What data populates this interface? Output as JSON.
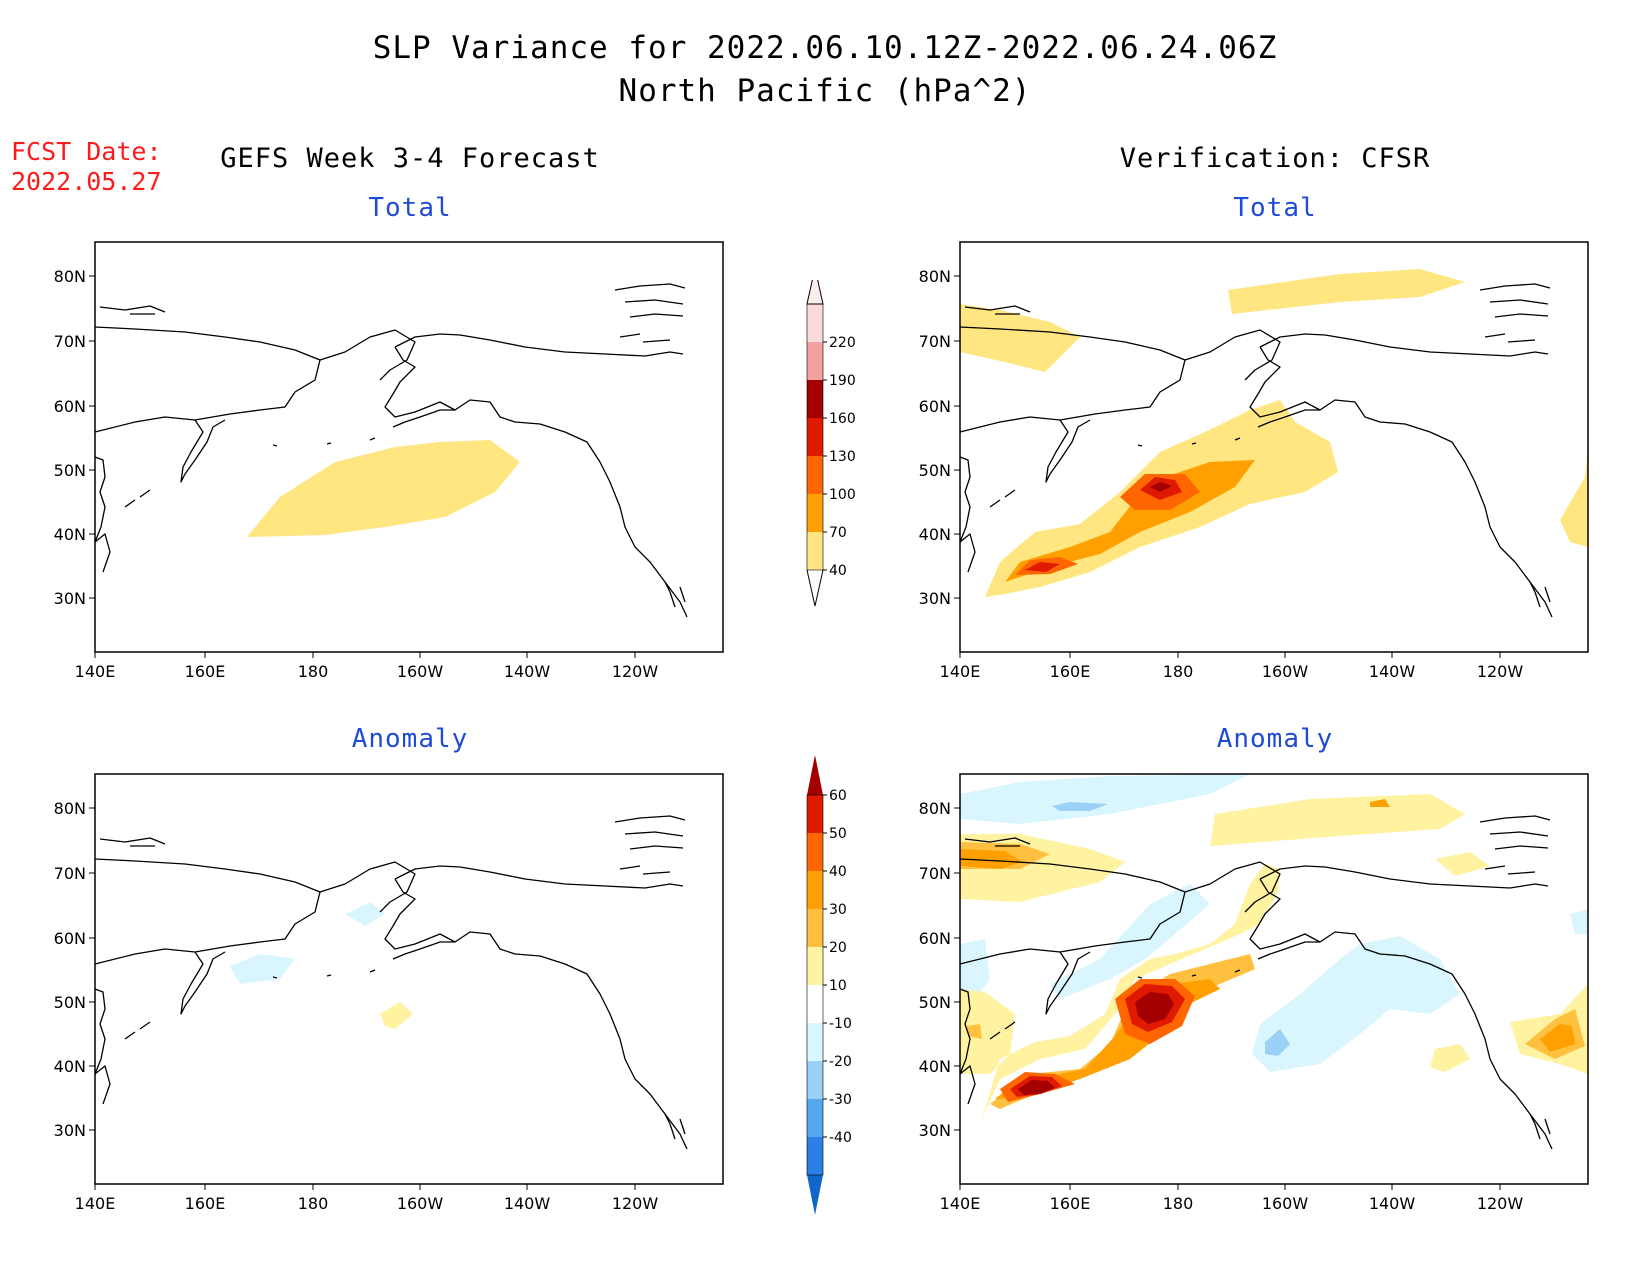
{
  "figure": {
    "title_line1": "SLP Variance for 2022.06.10.12Z-2022.06.24.06Z",
    "title_line2": "North Pacific (hPa^2)",
    "fcst_date_label": "FCST Date:",
    "fcst_date_value": "2022.05.27",
    "left_column_title": "GEFS Week 3-4 Forecast",
    "right_column_title": "Verification: CFSR"
  },
  "map": {
    "lon_ticks": [
      "140E",
      "160E",
      "180",
      "160W",
      "140W",
      "120W"
    ],
    "lat_ticks": [
      "80N",
      "70N",
      "60N",
      "50N",
      "40N",
      "30N"
    ]
  },
  "panels": [
    {
      "id": "gefs-total",
      "subtitle": "Total"
    },
    {
      "id": "cfsr-total",
      "subtitle": "Total"
    },
    {
      "id": "gefs-anomaly",
      "subtitle": "Anomaly"
    },
    {
      "id": "cfsr-anomaly",
      "subtitle": "Anomaly"
    }
  ],
  "colorbars": {
    "total": {
      "labels": [
        "40",
        "70",
        "100",
        "130",
        "160",
        "190",
        "220"
      ],
      "colors": [
        "#ffe680",
        "#ffa000",
        "#ff6600",
        "#e01a00",
        "#a50000",
        "#f2a0a0",
        "#fbdada"
      ],
      "colors_hex": "#ffe680 #ffa000 #ff6600 #e01a00 #a50000 #f2a0a0 #fbdada"
    },
    "anomaly": {
      "labels": [
        "60",
        "50",
        "40",
        "30",
        "20",
        "10",
        "-10",
        "-20",
        "-30",
        "-40"
      ],
      "colors": [
        "#a50000",
        "#e01a00",
        "#ff6600",
        "#ffa000",
        "#ffc040",
        "#fff2a0",
        "#ffffff",
        "#d9f6ff",
        "#9bd0f7",
        "#55a8ee",
        "#2a80e6",
        "#1166cc"
      ]
    }
  }
}
